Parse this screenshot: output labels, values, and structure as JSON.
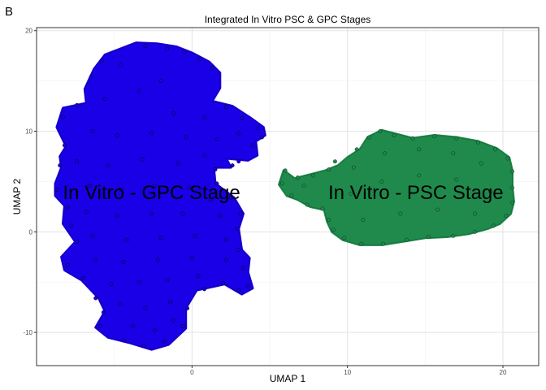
{
  "panel_letter": "B",
  "chart_data": {
    "type": "scatter",
    "title": "Integrated In Vitro PSC & GPC Stages",
    "xlabel": "UMAP 1",
    "ylabel": "UMAP 2",
    "xlim": [
      -10,
      22.3
    ],
    "ylim": [
      -13.3,
      20.3
    ],
    "x_ticks": [
      0,
      10,
      20
    ],
    "y_ticks": [
      -10,
      0,
      10,
      20
    ],
    "grid": true,
    "legend": "none",
    "clusters": [
      {
        "label": "In Vitro - GPC Stage",
        "label_pos": [
          -2.6,
          3.9
        ],
        "fill": "#1a00e6",
        "stroke": "#000000",
        "outline": [
          [
            -8.4,
            6.4
          ],
          [
            -8.5,
            7.5
          ],
          [
            -8.1,
            8.5
          ],
          [
            -8.7,
            10.4
          ],
          [
            -8.3,
            12.3
          ],
          [
            -6.8,
            12.8
          ],
          [
            -6.9,
            14.2
          ],
          [
            -6.3,
            16.2
          ],
          [
            -5.6,
            17.6
          ],
          [
            -4.6,
            18.2
          ],
          [
            -3.6,
            18.8
          ],
          [
            -2.2,
            18.7
          ],
          [
            -1.0,
            18.4
          ],
          [
            0.0,
            17.8
          ],
          [
            1.1,
            16.9
          ],
          [
            1.8,
            15.8
          ],
          [
            1.8,
            14.3
          ],
          [
            1.3,
            13.0
          ],
          [
            2.6,
            12.5
          ],
          [
            3.7,
            11.4
          ],
          [
            4.6,
            10.4
          ],
          [
            4.7,
            9.6
          ],
          [
            4.1,
            9.0
          ],
          [
            4.2,
            7.6
          ],
          [
            3.6,
            7.1
          ],
          [
            2.2,
            7.3
          ],
          [
            2.5,
            6.4
          ],
          [
            1.4,
            6.4
          ],
          [
            1.5,
            4.8
          ],
          [
            2.7,
            3.4
          ],
          [
            3.3,
            1.8
          ],
          [
            3.0,
            0.3
          ],
          [
            3.2,
            -1.8
          ],
          [
            3.7,
            -2.6
          ],
          [
            3.6,
            -4.0
          ],
          [
            3.9,
            -5.6
          ],
          [
            3.2,
            -6.2
          ],
          [
            2.1,
            -5.2
          ],
          [
            0.3,
            -5.8
          ],
          [
            -0.4,
            -7.6
          ],
          [
            -0.4,
            -9.6
          ],
          [
            -1.5,
            -11.2
          ],
          [
            -2.6,
            -11.7
          ],
          [
            -4.1,
            -11.0
          ],
          [
            -5.4,
            -10.5
          ],
          [
            -6.2,
            -9.5
          ],
          [
            -5.6,
            -7.9
          ],
          [
            -6.0,
            -6.6
          ],
          [
            -7.1,
            -4.8
          ],
          [
            -8.2,
            -3.8
          ],
          [
            -8.4,
            -2.5
          ],
          [
            -7.5,
            -1.0
          ],
          [
            -8.3,
            0.8
          ],
          [
            -8.2,
            2.6
          ],
          [
            -8.8,
            3.6
          ],
          [
            -8.8,
            4.8
          ],
          [
            -8.4,
            6.4
          ]
        ],
        "points": [
          [
            -3.0,
            18.5
          ],
          [
            -1.6,
            18.2
          ],
          [
            -0.5,
            17.9
          ],
          [
            0.5,
            17.2
          ],
          [
            1.3,
            16.3
          ],
          [
            -5.8,
            17.0
          ],
          [
            -6.5,
            15.4
          ],
          [
            -7.4,
            12.6
          ],
          [
            -8.3,
            11.4
          ],
          [
            3.2,
            11.3
          ],
          [
            4.3,
            10.3
          ],
          [
            4.5,
            9.4
          ],
          [
            3.9,
            8.6
          ],
          [
            2.2,
            12.4
          ],
          [
            3.0,
            7.0
          ],
          [
            2.6,
            6.6
          ],
          [
            -8.5,
            6.6
          ],
          [
            -8.2,
            8.6
          ],
          [
            -8.7,
            4.2
          ],
          [
            -8.0,
            2.4
          ],
          [
            -7.8,
            0.6
          ],
          [
            -7.4,
            -1.0
          ],
          [
            -8.0,
            -3.3
          ],
          [
            -7.0,
            -4.6
          ],
          [
            -6.2,
            -6.6
          ],
          [
            -5.7,
            -8.0
          ],
          [
            -5.9,
            -9.4
          ],
          [
            -4.4,
            -10.8
          ],
          [
            -3.1,
            -11.3
          ],
          [
            -1.8,
            -10.9
          ],
          [
            -0.6,
            -9.4
          ],
          [
            -0.3,
            -7.6
          ],
          [
            0.8,
            -5.7
          ],
          [
            2.0,
            -5.1
          ],
          [
            3.0,
            -5.8
          ],
          [
            3.6,
            -5.4
          ],
          [
            3.3,
            -3.6
          ],
          [
            3.0,
            -1.8
          ],
          [
            2.9,
            0.3
          ],
          [
            3.1,
            1.8
          ],
          [
            2.5,
            3.4
          ],
          [
            1.6,
            4.8
          ],
          [
            1.5,
            6.2
          ],
          [
            -4.6,
            16.6
          ],
          [
            -3.4,
            14.0
          ],
          [
            -2.0,
            15.0
          ],
          [
            -5.6,
            13.2
          ],
          [
            0.8,
            11.4
          ],
          [
            -1.2,
            11.8
          ],
          [
            -6.4,
            10.0
          ],
          [
            -4.8,
            9.6
          ],
          [
            -2.6,
            9.8
          ],
          [
            -0.4,
            9.4
          ],
          [
            1.6,
            9.2
          ],
          [
            3.0,
            9.8
          ],
          [
            -7.4,
            7.0
          ],
          [
            -5.4,
            6.6
          ],
          [
            -3.2,
            7.2
          ],
          [
            -0.9,
            6.8
          ],
          [
            0.8,
            7.6
          ],
          [
            -6.6,
            4.6
          ],
          [
            -4.6,
            4.2
          ],
          [
            -2.4,
            4.6
          ],
          [
            -0.2,
            4.4
          ],
          [
            1.2,
            3.2
          ],
          [
            -6.8,
            2.0
          ],
          [
            -4.8,
            1.6
          ],
          [
            -2.6,
            1.8
          ],
          [
            -0.6,
            1.8
          ],
          [
            1.8,
            1.6
          ],
          [
            -6.4,
            -0.4
          ],
          [
            -4.2,
            -0.8
          ],
          [
            -2.0,
            -0.6
          ],
          [
            0.2,
            -0.4
          ],
          [
            2.2,
            -0.8
          ],
          [
            -6.2,
            -2.8
          ],
          [
            -4.4,
            -3.0
          ],
          [
            -2.2,
            -2.8
          ],
          [
            0.0,
            -2.6
          ],
          [
            2.2,
            -2.8
          ],
          [
            -5.2,
            -5.2
          ],
          [
            -3.4,
            -5.0
          ],
          [
            -1.6,
            -4.8
          ],
          [
            0.4,
            -4.4
          ],
          [
            -4.6,
            -7.2
          ],
          [
            -3.0,
            -7.6
          ],
          [
            -1.4,
            -7.0
          ],
          [
            -3.8,
            -9.4
          ],
          [
            -2.4,
            -9.8
          ],
          [
            -1.2,
            -8.8
          ]
        ]
      },
      {
        "label": "In Vitro - PSC Stage",
        "label_pos": [
          14.4,
          3.9
        ],
        "fill": "#1f8a4c",
        "stroke": "#0a2e18",
        "outline": [
          [
            5.9,
            6.1
          ],
          [
            6.6,
            5.3
          ],
          [
            7.6,
            5.7
          ],
          [
            8.6,
            6.1
          ],
          [
            9.4,
            6.6
          ],
          [
            10.0,
            7.4
          ],
          [
            10.8,
            8.2
          ],
          [
            11.3,
            9.4
          ],
          [
            12.2,
            10.1
          ],
          [
            13.2,
            9.7
          ],
          [
            14.2,
            9.3
          ],
          [
            15.6,
            9.6
          ],
          [
            17.0,
            9.4
          ],
          [
            18.4,
            9.0
          ],
          [
            19.6,
            8.3
          ],
          [
            20.4,
            7.4
          ],
          [
            20.6,
            6.1
          ],
          [
            20.6,
            4.5
          ],
          [
            20.7,
            3.0
          ],
          [
            20.5,
            1.8
          ],
          [
            19.8,
            0.8
          ],
          [
            19.0,
            0.3
          ],
          [
            17.8,
            -0.2
          ],
          [
            16.4,
            -0.5
          ],
          [
            15.0,
            -0.6
          ],
          [
            13.8,
            -0.9
          ],
          [
            12.2,
            -1.3
          ],
          [
            10.8,
            -1.3
          ],
          [
            9.7,
            -0.8
          ],
          [
            9.0,
            0.0
          ],
          [
            8.7,
            1.0
          ],
          [
            8.5,
            2.2
          ],
          [
            7.6,
            2.5
          ],
          [
            6.8,
            3.2
          ],
          [
            6.1,
            3.6
          ],
          [
            5.6,
            4.7
          ],
          [
            5.9,
            6.1
          ]
        ],
        "points": [
          [
            6.0,
            6.1
          ],
          [
            6.8,
            5.4
          ],
          [
            7.8,
            5.6
          ],
          [
            8.8,
            6.2
          ],
          [
            5.8,
            4.8
          ],
          [
            6.4,
            3.6
          ],
          [
            7.4,
            2.7
          ],
          [
            8.4,
            2.3
          ],
          [
            9.2,
            7.0
          ],
          [
            10.6,
            8.2
          ],
          [
            11.4,
            9.4
          ],
          [
            12.1,
            10.0
          ],
          [
            13.0,
            9.6
          ],
          [
            14.2,
            9.3
          ],
          [
            15.6,
            9.5
          ],
          [
            17.0,
            9.3
          ],
          [
            18.4,
            8.9
          ],
          [
            19.5,
            8.2
          ],
          [
            20.3,
            7.3
          ],
          [
            20.6,
            6.0
          ],
          [
            20.6,
            4.4
          ],
          [
            20.6,
            2.9
          ],
          [
            20.2,
            1.6
          ],
          [
            19.4,
            0.6
          ],
          [
            18.2,
            0.0
          ],
          [
            16.8,
            -0.4
          ],
          [
            15.2,
            -0.5
          ],
          [
            13.8,
            -0.8
          ],
          [
            12.3,
            -1.2
          ],
          [
            10.9,
            -1.2
          ],
          [
            9.8,
            -0.6
          ],
          [
            9.1,
            0.2
          ],
          [
            8.8,
            1.2
          ],
          [
            10.4,
            6.4
          ],
          [
            12.4,
            7.8
          ],
          [
            14.6,
            8.2
          ],
          [
            16.8,
            7.8
          ],
          [
            18.6,
            6.8
          ],
          [
            10.2,
            3.8
          ],
          [
            12.2,
            5.0
          ],
          [
            14.6,
            5.6
          ],
          [
            17.0,
            5.2
          ],
          [
            19.2,
            4.0
          ],
          [
            11.0,
            1.2
          ],
          [
            13.4,
            1.8
          ],
          [
            15.8,
            2.2
          ],
          [
            18.2,
            1.8
          ],
          [
            7.2,
            4.6
          ]
        ]
      }
    ]
  }
}
